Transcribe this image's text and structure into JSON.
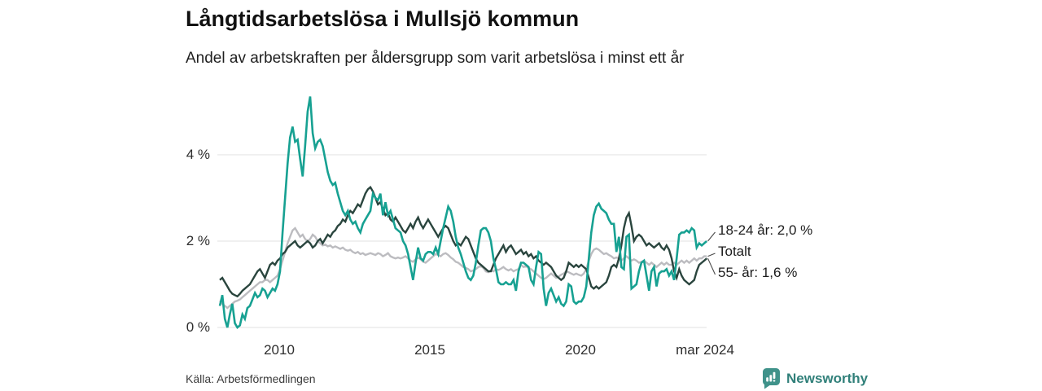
{
  "header": {
    "title": "Långtidsarbetslösa i Mullsjö kommun",
    "subtitle": "Andel av arbetskraften per åldersgrupp som varit arbetslösa i minst ett år"
  },
  "footer": {
    "source": "Källa: Arbetsförmedlingen",
    "brand": "Newsworthy"
  },
  "colors": {
    "teal": "#17a192",
    "dark_green": "#2a453e",
    "gray": "#bcbcc0",
    "grid": "#e6e6e8",
    "connector": "#4a4a4a",
    "brand_teal": "#3f928a"
  },
  "chart_data": {
    "type": "line",
    "title": "Långtidsarbetslösa i Mullsjö kommun",
    "subtitle": "Andel av arbetskraften per åldersgrupp som varit arbetslösa i minst ett år",
    "unit": "% av arbetskraften",
    "x_start_year": 2008,
    "points_per_year": 12,
    "x_end": "mar 2024",
    "ylim": [
      0,
      5.5
    ],
    "grid": true,
    "legend_position": "right-end-labels",
    "y_ticks": [
      {
        "value": 0,
        "label": "0 %"
      },
      {
        "value": 2,
        "label": "2 %"
      },
      {
        "value": 4,
        "label": "4 %"
      }
    ],
    "x_ticks": [
      {
        "value": 2010,
        "label": "2010"
      },
      {
        "value": 2015,
        "label": "2015"
      },
      {
        "value": 2020,
        "label": "2020"
      },
      {
        "value": 2024.1667,
        "label": "mar 2024"
      }
    ],
    "series": [
      {
        "name": "18-24 år",
        "end_label": "18-24 år: 2,0 %",
        "last_value": 2.0,
        "color": "#17a192",
        "values": [
          0.5,
          0.75,
          0.2,
          0.0,
          0.3,
          0.55,
          0.1,
          0.0,
          0.05,
          0.3,
          0.2,
          0.45,
          0.5,
          0.65,
          0.8,
          0.7,
          0.75,
          0.9,
          0.85,
          0.7,
          0.8,
          0.9,
          0.85,
          1.0,
          1.3,
          2.2,
          3.0,
          3.8,
          4.4,
          4.65,
          4.3,
          4.35,
          3.9,
          3.5,
          4.2,
          5.0,
          5.35,
          4.5,
          4.15,
          4.3,
          4.35,
          4.2,
          3.9,
          3.6,
          3.4,
          3.3,
          3.35,
          3.1,
          2.9,
          2.7,
          2.6,
          2.7,
          2.5,
          2.4,
          2.45,
          2.3,
          2.2,
          2.4,
          2.5,
          2.6,
          2.7,
          3.1,
          3.0,
          2.95,
          3.1,
          2.6,
          2.9,
          2.6,
          2.7,
          2.5,
          2.3,
          2.25,
          2.2,
          2.0,
          1.9,
          1.7,
          1.4,
          1.1,
          1.5,
          1.85,
          1.6,
          1.55,
          1.7,
          1.75,
          1.75,
          1.7,
          1.85,
          1.7,
          2.0,
          2.3,
          2.55,
          2.8,
          2.7,
          2.45,
          2.1,
          1.85,
          1.7,
          1.5,
          1.3,
          1.15,
          1.1,
          1.2,
          1.5,
          1.9,
          2.25,
          2.3,
          2.3,
          2.2,
          2.0,
          1.6,
          1.35,
          1.05,
          1.0,
          1.0,
          1.05,
          1.0,
          1.0,
          1.1,
          0.85,
          1.3,
          1.5,
          1.5,
          1.45,
          1.4,
          1.1,
          1.0,
          1.4,
          1.75,
          1.7,
          0.9,
          0.5,
          0.8,
          0.9,
          0.75,
          0.6,
          0.7,
          0.55,
          0.5,
          0.6,
          1.0,
          0.95,
          0.6,
          0.55,
          0.6,
          0.6,
          0.7,
          0.95,
          1.6,
          2.2,
          2.6,
          2.8,
          2.87,
          2.75,
          2.7,
          2.65,
          2.5,
          2.4,
          2.4,
          1.75,
          2.1,
          1.4,
          1.35,
          2.1,
          2.15,
          0.9,
          0.95,
          1.0,
          1.3,
          1.5,
          1.55,
          1.2,
          0.85,
          1.3,
          1.4,
          0.95,
          1.25,
          1.3,
          1.3,
          1.35,
          1.2,
          1.3,
          1.1,
          1.6,
          2.15,
          2.2,
          2.2,
          2.25,
          2.2,
          2.3,
          2.25,
          1.85,
          1.95,
          1.9,
          1.95,
          2.0
        ]
      },
      {
        "name": "Totalt",
        "end_label": "Totalt",
        "last_value": 1.65,
        "color": "#bcbcc0",
        "values": [
          0.62,
          0.55,
          0.5,
          0.45,
          0.5,
          0.55,
          0.6,
          0.62,
          0.65,
          0.7,
          0.75,
          0.8,
          0.85,
          0.9,
          0.95,
          1.0,
          1.05,
          1.05,
          1.1,
          1.1,
          1.05,
          1.1,
          1.15,
          1.2,
          1.35,
          1.55,
          1.75,
          1.95,
          2.1,
          2.25,
          2.3,
          2.2,
          2.1,
          2.15,
          2.05,
          2.0,
          2.05,
          2.15,
          2.1,
          2.0,
          1.95,
          1.9,
          1.92,
          1.88,
          1.9,
          1.85,
          1.88,
          1.85,
          1.82,
          1.85,
          1.8,
          1.78,
          1.8,
          1.75,
          1.72,
          1.75,
          1.7,
          1.72,
          1.68,
          1.7,
          1.72,
          1.7,
          1.68,
          1.72,
          1.7,
          1.65,
          1.68,
          1.72,
          1.65,
          1.62,
          1.6,
          1.62,
          1.6,
          1.62,
          1.65,
          1.6,
          1.55,
          1.52,
          1.58,
          1.62,
          1.58,
          1.52,
          1.5,
          1.55,
          1.6,
          1.65,
          1.7,
          1.68,
          1.65,
          1.7,
          1.72,
          1.68,
          1.62,
          1.58,
          1.52,
          1.5,
          1.45,
          1.4,
          1.38,
          1.35,
          1.3,
          1.32,
          1.35,
          1.4,
          1.42,
          1.38,
          1.3,
          1.28,
          1.32,
          1.3,
          1.35,
          1.33,
          1.36,
          1.4,
          1.35,
          1.32,
          1.35,
          1.3,
          1.33,
          1.35,
          1.45,
          1.4,
          1.42,
          1.38,
          1.35,
          1.3,
          1.25,
          1.2,
          1.15,
          1.12,
          1.15,
          1.2,
          1.25,
          1.2,
          1.15,
          1.18,
          1.22,
          1.25,
          1.3,
          1.28,
          1.25,
          1.22,
          1.25,
          1.22,
          1.2,
          1.25,
          1.35,
          1.55,
          1.7,
          1.8,
          1.83,
          1.8,
          1.75,
          1.7,
          1.72,
          1.68,
          1.65,
          1.6,
          1.62,
          1.6,
          1.55,
          1.6,
          1.65,
          1.6,
          1.55,
          1.58,
          1.55,
          1.5,
          1.52,
          1.55,
          1.5,
          1.45,
          1.5,
          1.45,
          1.4,
          1.45,
          1.5,
          1.45,
          1.5,
          1.45,
          1.45,
          1.5,
          1.45,
          1.5,
          1.55,
          1.5,
          1.55,
          1.5,
          1.55,
          1.6,
          1.55,
          1.6,
          1.6,
          1.65,
          1.65
        ]
      },
      {
        "name": "55- år",
        "end_label": "55- år: 1,6 %",
        "last_value": 1.6,
        "color": "#2a453e",
        "values": [
          1.1,
          1.15,
          1.05,
          0.95,
          0.85,
          0.78,
          0.75,
          0.72,
          0.78,
          0.85,
          0.9,
          0.95,
          1.0,
          1.1,
          1.2,
          1.3,
          1.35,
          1.25,
          1.15,
          1.3,
          1.45,
          1.5,
          1.45,
          1.55,
          1.6,
          1.7,
          1.75,
          1.85,
          1.9,
          1.95,
          2.0,
          1.9,
          1.85,
          1.9,
          1.95,
          2.0,
          1.95,
          1.85,
          1.9,
          2.0,
          2.05,
          1.95,
          2.05,
          2.15,
          2.1,
          2.2,
          2.25,
          2.35,
          2.4,
          2.5,
          2.45,
          2.6,
          2.7,
          2.65,
          2.75,
          2.85,
          2.8,
          2.95,
          3.1,
          3.2,
          3.25,
          3.15,
          3.0,
          2.85,
          2.9,
          2.75,
          2.6,
          2.65,
          2.5,
          2.45,
          2.55,
          2.45,
          2.35,
          2.25,
          2.2,
          2.3,
          2.4,
          2.3,
          2.45,
          2.55,
          2.4,
          2.3,
          2.4,
          2.5,
          2.4,
          2.3,
          2.2,
          2.1,
          2.2,
          2.3,
          2.35,
          2.3,
          2.15,
          2.0,
          1.9,
          1.95,
          1.9,
          2.0,
          2.1,
          2.05,
          1.9,
          1.75,
          1.6,
          1.5,
          1.45,
          1.4,
          1.35,
          1.3,
          1.3,
          1.45,
          1.6,
          1.7,
          1.8,
          1.9,
          1.75,
          1.85,
          1.9,
          1.8,
          1.7,
          1.75,
          1.8,
          1.7,
          1.75,
          1.65,
          1.7,
          1.6,
          1.65,
          1.55,
          1.5,
          1.45,
          1.5,
          1.45,
          1.4,
          1.3,
          1.2,
          1.15,
          1.1,
          1.15,
          1.3,
          1.5,
          1.45,
          1.4,
          1.45,
          1.4,
          1.45,
          1.4,
          1.35,
          1.15,
          0.95,
          0.9,
          0.95,
          0.9,
          0.95,
          1.0,
          1.05,
          1.2,
          1.4,
          1.45,
          1.4,
          1.6,
          1.9,
          2.3,
          2.55,
          2.65,
          2.35,
          2.0,
          2.1,
          2.15,
          2.1,
          2.0,
          1.9,
          1.95,
          1.9,
          1.85,
          1.9,
          1.95,
          1.85,
          1.8,
          1.9,
          1.8,
          1.6,
          1.3,
          1.15,
          1.35,
          1.2,
          1.1,
          1.05,
          1.0,
          1.05,
          1.1,
          1.3,
          1.45,
          1.5,
          1.55,
          1.6
        ]
      }
    ]
  }
}
